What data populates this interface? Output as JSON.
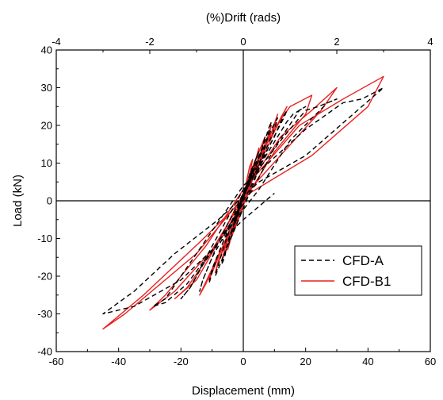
{
  "chart_data": {
    "type": "line",
    "title": "",
    "xlabel": "Displacement (mm)",
    "ylabel": "Load (kN)",
    "x2label": "(%)Drift (rads)",
    "xlim": [
      -60,
      60
    ],
    "ylim": [
      -40,
      40
    ],
    "x2lim": [
      -4,
      4
    ],
    "xticks": [
      -60,
      -40,
      -20,
      0,
      20,
      40,
      60
    ],
    "yticks": [
      -40,
      -30,
      -20,
      -10,
      0,
      10,
      20,
      30,
      40
    ],
    "x2ticks": [
      -4,
      -2,
      0,
      2,
      4
    ],
    "grid": false,
    "zero_lines": true,
    "legend_position": "lower-right",
    "series": [
      {
        "name": "CFD-A",
        "color": "#000000",
        "style": "dashed",
        "x": [
          0,
          1,
          2,
          3,
          2,
          0,
          -2,
          -3,
          -2,
          -1,
          0,
          2,
          3,
          4,
          5,
          4,
          2,
          0,
          -2,
          -4,
          -5,
          -4,
          -2,
          0,
          3,
          5,
          6,
          7,
          6.5,
          4,
          0,
          -3,
          -5,
          -6,
          -7,
          -6,
          -3,
          0,
          3,
          5,
          7,
          8,
          9,
          8,
          6,
          3,
          0,
          -3,
          -6,
          -8,
          -9,
          -8,
          -5,
          0,
          5,
          8,
          10,
          11,
          9,
          5,
          0,
          -5,
          -8,
          -10,
          -11,
          -10,
          -6,
          0,
          6,
          10,
          12,
          14,
          13,
          8,
          2,
          -6,
          -10,
          -13,
          -14,
          -13,
          -8,
          0,
          8,
          14,
          16,
          20,
          18,
          10,
          3,
          -8,
          -13,
          -17,
          -20,
          -17,
          -10,
          0,
          12,
          20,
          24,
          30,
          27,
          15,
          5,
          -10,
          -18,
          -25,
          -29,
          -25,
          -15,
          0,
          20,
          32,
          38,
          45,
          38,
          20,
          5,
          -8,
          -22,
          -35,
          -45,
          -35,
          -20,
          0,
          10
        ],
        "y": [
          0,
          4,
          7,
          9,
          6,
          2,
          -3,
          -6,
          -5,
          -2,
          0,
          6,
          9,
          11,
          13,
          11,
          5,
          1,
          -4,
          -9,
          -12,
          -10,
          -4,
          1,
          7,
          11,
          14,
          17,
          15,
          9,
          1,
          -6,
          -11,
          -15,
          -17,
          -14,
          -6,
          1,
          8,
          12,
          16,
          19,
          21,
          18,
          11,
          4,
          -2,
          -8,
          -14,
          -18,
          -20,
          -17,
          -9,
          1,
          10,
          15,
          19,
          22,
          19,
          11,
          2,
          -8,
          -14,
          -19,
          -22,
          -18,
          -10,
          1,
          11,
          17,
          21,
          24,
          22,
          14,
          3,
          -9,
          -15,
          -21,
          -24,
          -21,
          -11,
          2,
          13,
          21,
          23,
          25,
          24,
          14,
          3,
          -11,
          -17,
          -23,
          -26,
          -23,
          -12,
          3,
          16,
          24,
          25,
          27,
          26,
          16,
          3,
          -13,
          -22,
          -27,
          -28,
          -26,
          -14,
          4,
          19,
          26,
          27,
          30,
          25,
          12,
          5,
          -5,
          -14,
          -24,
          -30,
          -28,
          -21,
          -5,
          2
        ]
      },
      {
        "name": "CFD-B1",
        "color": "#e8211f",
        "style": "solid",
        "x": [
          0,
          1,
          2,
          3,
          2,
          0,
          -2,
          -3,
          -2,
          0,
          2,
          4,
          5,
          4,
          2,
          0,
          -2,
          -4,
          -5,
          -4,
          -2,
          0,
          3,
          5,
          7,
          6,
          4,
          1,
          -2,
          -5,
          -7,
          -6,
          -3,
          0,
          4,
          7,
          9,
          8,
          5,
          1,
          -3,
          -7,
          -9,
          -8,
          -4,
          0,
          5,
          9,
          11,
          10,
          6,
          1,
          -4,
          -9,
          -11,
          -10,
          -5,
          0,
          6,
          11,
          14,
          12,
          7,
          1,
          -5,
          -10,
          -14,
          -12,
          -6,
          0,
          8,
          15,
          22,
          20,
          10,
          1,
          -8,
          -15,
          -22,
          -18,
          -8,
          0,
          12,
          22,
          30,
          25,
          13,
          1,
          -10,
          -22,
          -30,
          -25,
          -12,
          0,
          18,
          32,
          45,
          40,
          22,
          2,
          -14,
          -32,
          -45,
          -38,
          -15,
          0
        ],
        "y": [
          0,
          5,
          9,
          11,
          7,
          2,
          -4,
          -8,
          -6,
          0,
          7,
          11,
          14,
          11,
          5,
          0,
          -5,
          -10,
          -13,
          -10,
          -4,
          1,
          9,
          13,
          17,
          14,
          8,
          1,
          -6,
          -12,
          -16,
          -13,
          -6,
          1,
          10,
          15,
          20,
          17,
          10,
          2,
          -7,
          -14,
          -19,
          -16,
          -8,
          1,
          12,
          18,
          23,
          20,
          12,
          2,
          -8,
          -16,
          -21,
          -19,
          -9,
          1,
          13,
          20,
          25,
          22,
          13,
          2,
          -10,
          -18,
          -25,
          -22,
          -11,
          1,
          17,
          25,
          28,
          23,
          13,
          1,
          -11,
          -21,
          -26,
          -23,
          -11,
          2,
          17,
          24,
          30,
          24,
          13,
          2,
          -13,
          -24,
          -29,
          -25,
          -12,
          3,
          20,
          27,
          33,
          25,
          12,
          2,
          -11,
          -25,
          -34,
          -30,
          -14,
          1
        ]
      }
    ]
  }
}
